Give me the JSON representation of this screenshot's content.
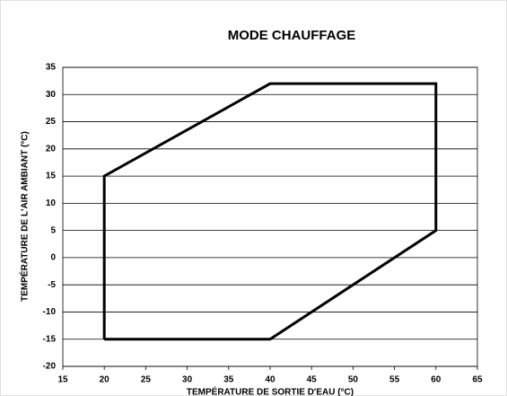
{
  "chart_data": {
    "type": "line",
    "title": "MODE CHAUFFAGE",
    "x_label": "TEMPÉRATURE DE SORTIE D'EAU (°C)",
    "y_label": "TEMPÉRATURE DE L'AIR AMBIANT (°C)",
    "x": [
      20,
      20,
      40,
      60,
      60,
      40,
      20
    ],
    "values": [
      -15,
      15,
      32,
      32,
      5,
      -15,
      -15
    ],
    "color": "#000000",
    "xlim": [
      15,
      65
    ],
    "xticks": [
      15,
      20,
      25,
      30,
      35,
      40,
      45,
      50,
      55,
      60,
      65
    ],
    "ylim": [
      -20,
      35
    ],
    "yticks": [
      -20,
      -15,
      -10,
      -5,
      0,
      5,
      10,
      15,
      20,
      25,
      30,
      35
    ],
    "grid": true
  }
}
